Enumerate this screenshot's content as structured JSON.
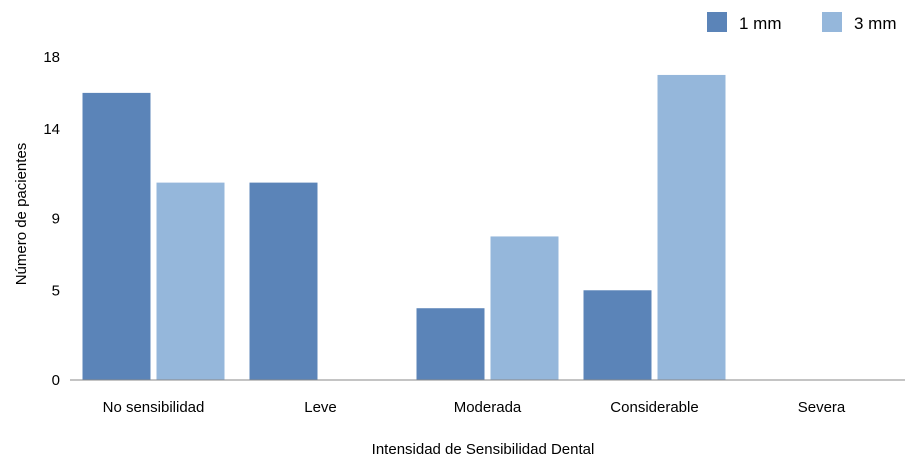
{
  "chart_data": {
    "type": "bar",
    "title": "",
    "xlabel": "Intensidad de Sensibilidad Dental",
    "ylabel": "Número de pacientes",
    "ylim": [
      0,
      18
    ],
    "yticks": [
      0,
      5,
      9,
      14,
      18
    ],
    "grid": false,
    "legend_position": "top-right",
    "categories": [
      "No sensibilidad",
      "Leve",
      "Moderada",
      "Considerable",
      "Severa"
    ],
    "series": [
      {
        "name": "1 mm",
        "color": "#5b84b8",
        "values": [
          16,
          11,
          4,
          5,
          0
        ]
      },
      {
        "name": "3 mm",
        "color": "#95b7db",
        "values": [
          11,
          0,
          8,
          17,
          0
        ]
      }
    ]
  }
}
